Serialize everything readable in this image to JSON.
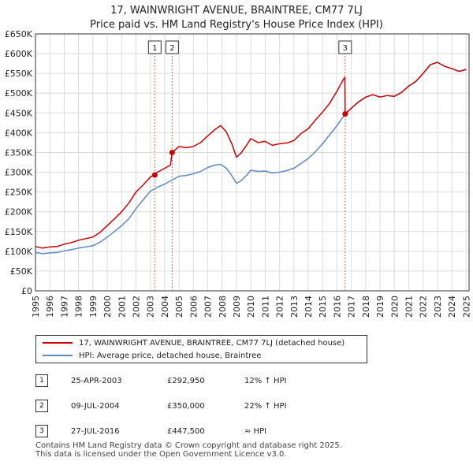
{
  "title": {
    "line1": "17, WAINWRIGHT AVENUE, BRAINTREE, CM77 7LJ",
    "line2": "Price paid vs. HM Land Registry's House Price Index (HPI)"
  },
  "legend": {
    "series1": "17, WAINWRIGHT AVENUE, BRAINTREE, CM77 7LJ (detached house)",
    "series2": "HPI: Average price, detached house, Braintree"
  },
  "sales": [
    {
      "num": "1",
      "date": "25-APR-2003",
      "price": "£292,950",
      "hpi": "12% ↑ HPI"
    },
    {
      "num": "2",
      "date": "09-JUL-2004",
      "price": "£350,000",
      "hpi": "22% ↑ HPI"
    },
    {
      "num": "3",
      "date": "27-JUL-2016",
      "price": "£447,500",
      "hpi": "≈ HPI"
    }
  ],
  "footer": {
    "line1": "Contains HM Land Registry data © Crown copyright and database right 2025.",
    "line2": "This data is licensed under the Open Government Licence v3.0."
  },
  "colors": {
    "property": "#cc0000",
    "hpi": "#5b8ac6",
    "grid": "#dcdcdc",
    "marker_line": "#e06060"
  },
  "chart_data": {
    "type": "line",
    "title": "Price paid vs. HM Land Registry's House Price Index (HPI)",
    "xlabel": "",
    "ylabel": "",
    "xlim": [
      1995,
      2025.2
    ],
    "ylim": [
      0,
      650000
    ],
    "y_ticks": [
      0,
      50000,
      100000,
      150000,
      200000,
      250000,
      300000,
      350000,
      400000,
      450000,
      500000,
      550000,
      600000,
      650000
    ],
    "y_tick_labels": [
      "£0",
      "£50K",
      "£100K",
      "£150K",
      "£200K",
      "£250K",
      "£300K",
      "£350K",
      "£400K",
      "£450K",
      "£500K",
      "£550K",
      "£600K",
      "£650K"
    ],
    "x_ticks": [
      1995,
      1996,
      1997,
      1998,
      1999,
      2000,
      2001,
      2002,
      2003,
      2004,
      2005,
      2006,
      2007,
      2008,
      2009,
      2010,
      2011,
      2012,
      2013,
      2014,
      2015,
      2016,
      2017,
      2018,
      2019,
      2020,
      2021,
      2022,
      2023,
      2024,
      2025
    ],
    "x_tick_labels": [
      "1995",
      "1996",
      "1997",
      "1998",
      "1999",
      "2000",
      "2001",
      "2002",
      "2003",
      "2004",
      "2005",
      "2006",
      "2007",
      "2008",
      "2009",
      "2010",
      "2011",
      "2012",
      "2013",
      "2014",
      "2015",
      "2016",
      "2017",
      "2018",
      "2019",
      "2020",
      "2021",
      "2022",
      "2023",
      "2024",
      "2025"
    ],
    "grid": true,
    "series": [
      {
        "name": "17, WAINWRIGHT AVENUE, BRAINTREE, CM77 7LJ (detached house)",
        "x": [
          1995.0,
          1995.5,
          1996.0,
          1996.5,
          1997.0,
          1997.5,
          1998.0,
          1998.5,
          1999.0,
          1999.5,
          2000.0,
          2000.5,
          2001.0,
          2001.5,
          2002.0,
          2002.5,
          2003.0,
          2003.31,
          2003.5,
          2004.0,
          2004.4,
          2004.52,
          2005.0,
          2005.5,
          2006.0,
          2006.5,
          2007.0,
          2007.5,
          2007.9,
          2008.3,
          2008.7,
          2009.0,
          2009.3,
          2009.7,
          2010.0,
          2010.5,
          2011.0,
          2011.5,
          2012.0,
          2012.5,
          2013.0,
          2013.5,
          2014.0,
          2014.5,
          2015.0,
          2015.5,
          2016.0,
          2016.45,
          2016.55,
          2016.57,
          2017.0,
          2017.5,
          2018.0,
          2018.5,
          2019.0,
          2019.5,
          2020.0,
          2020.5,
          2021.0,
          2021.5,
          2022.0,
          2022.5,
          2023.0,
          2023.5,
          2024.0,
          2024.5,
          2025.0
        ],
        "values": [
          112000,
          108000,
          111000,
          112000,
          118000,
          122000,
          128000,
          132000,
          136000,
          148000,
          165000,
          182000,
          200000,
          222000,
          250000,
          268000,
          288000,
          292950,
          300000,
          310000,
          318000,
          350000,
          365000,
          362000,
          365000,
          375000,
          392000,
          408000,
          418000,
          402000,
          370000,
          338000,
          348000,
          368000,
          385000,
          375000,
          378000,
          368000,
          372000,
          374000,
          380000,
          398000,
          410000,
          432000,
          452000,
          475000,
          505000,
          535000,
          540000,
          447500,
          462000,
          478000,
          490000,
          496000,
          490000,
          494000,
          492000,
          502000,
          518000,
          530000,
          550000,
          572000,
          578000,
          568000,
          562000,
          555000,
          560000
        ]
      },
      {
        "name": "HPI: Average price, detached house, Braintree",
        "x": [
          1995.0,
          1995.5,
          1996.0,
          1996.5,
          1997.0,
          1997.5,
          1998.0,
          1998.5,
          1999.0,
          1999.5,
          2000.0,
          2000.5,
          2001.0,
          2001.5,
          2002.0,
          2002.5,
          2003.0,
          2003.5,
          2004.0,
          2004.5,
          2005.0,
          2005.5,
          2006.0,
          2006.5,
          2007.0,
          2007.5,
          2007.9,
          2008.3,
          2008.7,
          2009.0,
          2009.3,
          2009.7,
          2010.0,
          2010.5,
          2011.0,
          2011.5,
          2012.0,
          2012.5,
          2013.0,
          2013.5,
          2014.0,
          2014.5,
          2015.0,
          2015.5,
          2016.0,
          2016.57,
          2017.0,
          2017.5,
          2018.0,
          2018.5,
          2019.0,
          2019.5,
          2020.0,
          2020.5,
          2021.0,
          2021.5,
          2022.0,
          2022.5,
          2023.0,
          2023.5,
          2024.0,
          2024.5,
          2025.0
        ],
        "values": [
          97000,
          94000,
          96000,
          97000,
          101000,
          104000,
          108000,
          111000,
          114000,
          123000,
          136000,
          150000,
          165000,
          182000,
          208000,
          230000,
          252000,
          262000,
          270000,
          280000,
          290000,
          292000,
          296000,
          302000,
          312000,
          318000,
          320000,
          310000,
          290000,
          272000,
          278000,
          292000,
          305000,
          302000,
          303000,
          298000,
          300000,
          304000,
          310000,
          322000,
          335000,
          352000,
          372000,
          395000,
          418000,
          447500,
          462000,
          478000,
          490000,
          496000,
          490000,
          494000,
          492000,
          502000,
          518000,
          530000,
          550000,
          572000,
          578000,
          568000,
          562000,
          555000,
          560000
        ]
      }
    ],
    "sale_markers": [
      {
        "label": "1",
        "x": 2003.31,
        "value": 292950
      },
      {
        "label": "2",
        "x": 2004.52,
        "value": 350000
      },
      {
        "label": "3",
        "x": 2016.57,
        "value": 447500
      }
    ]
  }
}
